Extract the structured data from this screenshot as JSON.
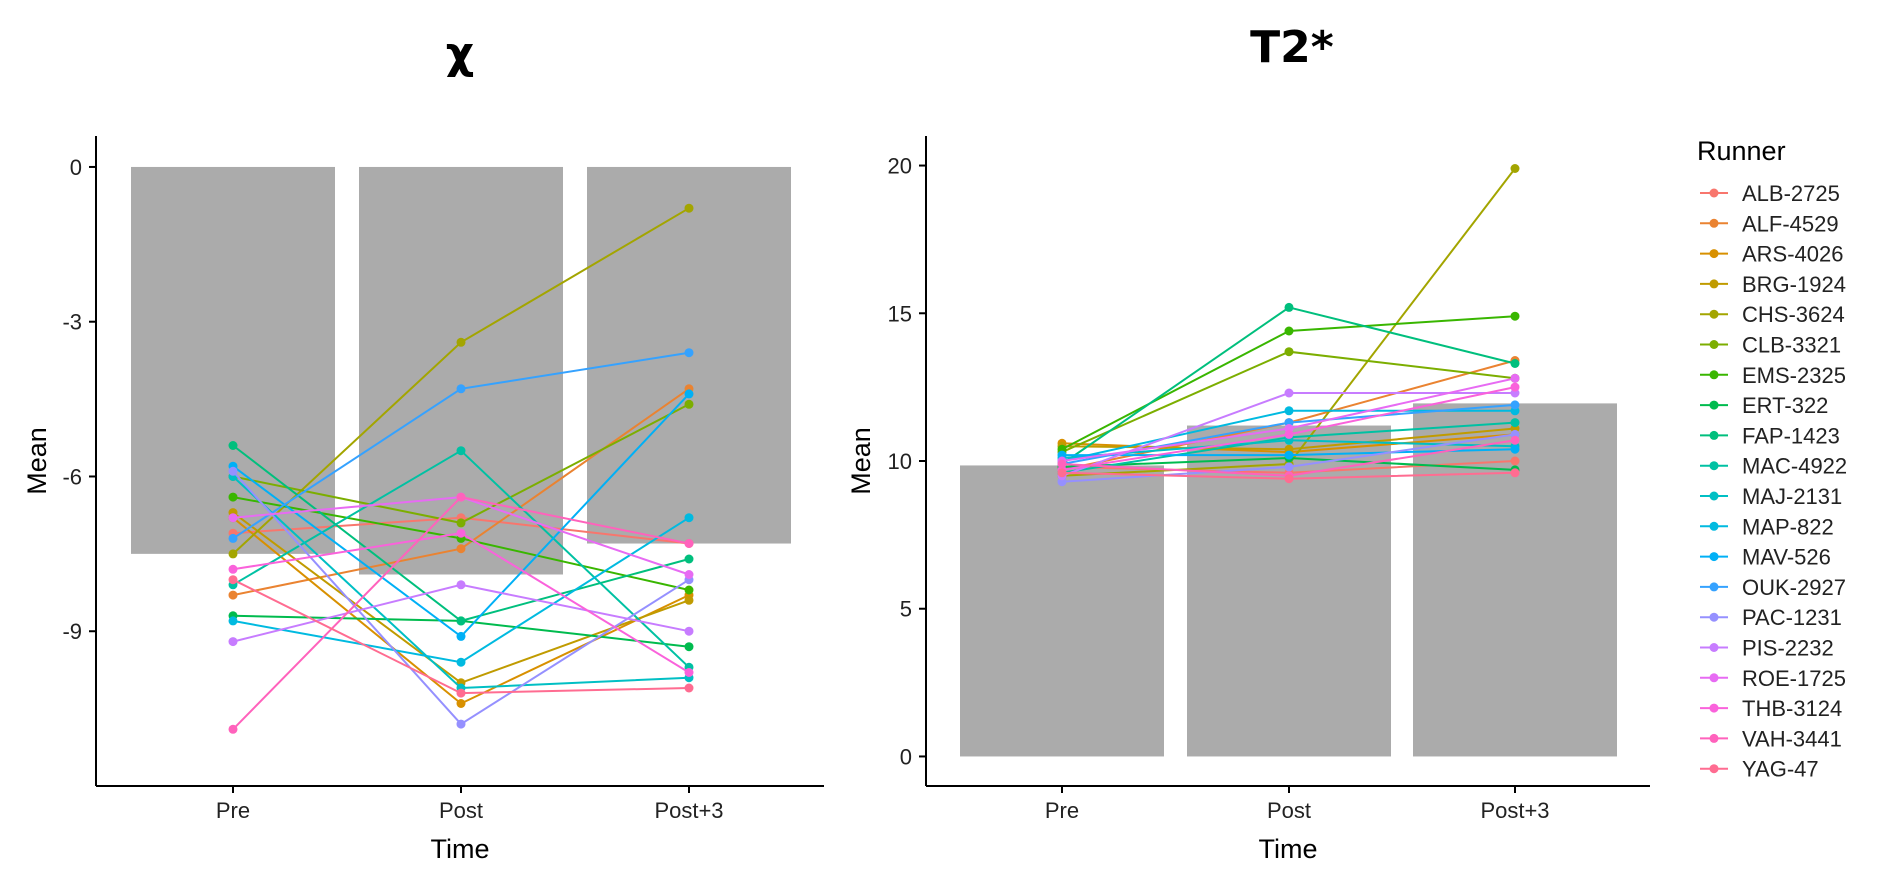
{
  "chart_data": [
    {
      "type": "bar+line",
      "title": "χ",
      "xlabel": "Time",
      "ylabel": "Mean",
      "categories": [
        "Pre",
        "Post",
        "Post+3"
      ],
      "ylim": [
        -12,
        0.6
      ],
      "yticks": [
        0,
        -3,
        -6,
        -9
      ],
      "ytick_labels": [
        "0",
        "-3",
        "-6",
        "-9"
      ],
      "bar_color": "#ababab",
      "bars": [
        -7.5,
        -7.9,
        -7.3
      ],
      "series": [
        {
          "name": "ALB-2725",
          "values": [
            -7.1,
            -6.8,
            -7.3
          ]
        },
        {
          "name": "ALF-4529",
          "values": [
            -8.3,
            -7.4,
            -4.3
          ]
        },
        {
          "name": "ARS-4026",
          "values": [
            -6.8,
            -10.4,
            -8.3
          ]
        },
        {
          "name": "BRG-1924",
          "values": [
            -6.7,
            -10.0,
            -8.4
          ]
        },
        {
          "name": "CHS-3624",
          "values": [
            -7.5,
            -3.4,
            -0.8
          ]
        },
        {
          "name": "CLB-3321",
          "values": [
            -6.0,
            -6.9,
            -4.6
          ]
        },
        {
          "name": "EMS-2325",
          "values": [
            -6.4,
            -7.2,
            -8.2
          ]
        },
        {
          "name": "ERT-322",
          "values": [
            -8.7,
            -8.8,
            -9.3
          ]
        },
        {
          "name": "FAP-1423",
          "values": [
            -5.4,
            -8.8,
            -7.6
          ]
        },
        {
          "name": "MAC-4922",
          "values": [
            -8.1,
            -5.5,
            -9.7
          ]
        },
        {
          "name": "MAJ-2131",
          "values": [
            -6.0,
            -10.1,
            -9.9
          ]
        },
        {
          "name": "MAP-822",
          "values": [
            -8.8,
            -9.6,
            -6.8
          ]
        },
        {
          "name": "MAV-526",
          "values": [
            -5.8,
            -9.1,
            -4.4
          ]
        },
        {
          "name": "OUK-2927",
          "values": [
            -7.2,
            -4.3,
            -3.6
          ]
        },
        {
          "name": "PAC-1231",
          "values": [
            -5.9,
            -10.8,
            -8.0
          ]
        },
        {
          "name": "PIS-2232",
          "values": [
            -9.2,
            -8.1,
            -9.0
          ]
        },
        {
          "name": "ROE-1725",
          "values": [
            -6.8,
            -6.4,
            -7.9
          ]
        },
        {
          "name": "THB-3124",
          "values": [
            -7.8,
            -7.1,
            -9.8
          ]
        },
        {
          "name": "VAH-3441",
          "values": [
            -10.9,
            -6.4,
            -7.3
          ]
        },
        {
          "name": "YAG-47",
          "values": [
            -8.0,
            -10.2,
            -10.1
          ]
        }
      ]
    },
    {
      "type": "bar+line",
      "title": "T2*",
      "xlabel": "Time",
      "ylabel": "Mean",
      "categories": [
        "Pre",
        "Post",
        "Post+3"
      ],
      "ylim": [
        -1.0,
        21.0
      ],
      "yticks": [
        0,
        5,
        10,
        15,
        20
      ],
      "ytick_labels": [
        "0",
        "5",
        "10",
        "15",
        "20"
      ],
      "bar_color": "#ababab",
      "bars": [
        9.85,
        11.2,
        11.95
      ],
      "series": [
        {
          "name": "ALB-2725",
          "values": [
            9.8,
            9.6,
            10.0
          ]
        },
        {
          "name": "ALF-4529",
          "values": [
            9.7,
            11.3,
            13.4
          ]
        },
        {
          "name": "ARS-4026",
          "values": [
            10.6,
            10.3,
            10.9
          ]
        },
        {
          "name": "BRG-1924",
          "values": [
            10.5,
            10.4,
            11.1
          ]
        },
        {
          "name": "CHS-3624",
          "values": [
            9.5,
            9.9,
            19.9
          ]
        },
        {
          "name": "CLB-3321",
          "values": [
            10.3,
            13.7,
            12.8
          ]
        },
        {
          "name": "EMS-2325",
          "values": [
            10.4,
            14.4,
            14.9
          ]
        },
        {
          "name": "ERT-322",
          "values": [
            9.8,
            10.1,
            9.7
          ]
        },
        {
          "name": "FAP-1423",
          "values": [
            9.9,
            15.2,
            13.3
          ]
        },
        {
          "name": "MAC-4922",
          "values": [
            9.6,
            10.8,
            11.3
          ]
        },
        {
          "name": "MAJ-2131",
          "values": [
            10.1,
            10.7,
            10.5
          ]
        },
        {
          "name": "MAP-822",
          "values": [
            10.0,
            11.7,
            11.7
          ]
        },
        {
          "name": "MAV-526",
          "values": [
            10.2,
            10.2,
            10.4
          ]
        },
        {
          "name": "OUK-2927",
          "values": [
            9.9,
            11.3,
            11.9
          ]
        },
        {
          "name": "PAC-1231",
          "values": [
            9.3,
            9.8,
            10.9
          ]
        },
        {
          "name": "PIS-2232",
          "values": [
            9.5,
            12.3,
            12.3
          ]
        },
        {
          "name": "ROE-1725",
          "values": [
            10.0,
            11.1,
            12.8
          ]
        },
        {
          "name": "THB-3124",
          "values": [
            9.7,
            10.9,
            12.5
          ]
        },
        {
          "name": "VAH-3441",
          "values": [
            9.9,
            9.5,
            10.7
          ]
        },
        {
          "name": "YAG-47",
          "values": [
            9.6,
            9.4,
            9.6
          ]
        }
      ]
    }
  ],
  "legend": {
    "title": "Runner",
    "placement": "right",
    "items": [
      {
        "name": "ALB-2725",
        "color": "#F8766D"
      },
      {
        "name": "ALF-4529",
        "color": "#EA8331"
      },
      {
        "name": "ARS-4026",
        "color": "#D89000"
      },
      {
        "name": "BRG-1924",
        "color": "#C09B00"
      },
      {
        "name": "CHS-3624",
        "color": "#A3A500"
      },
      {
        "name": "CLB-3321",
        "color": "#7CAE00"
      },
      {
        "name": "EMS-2325",
        "color": "#39B600"
      },
      {
        "name": "ERT-322",
        "color": "#00BB4E"
      },
      {
        "name": "FAP-1423",
        "color": "#00BF7D"
      },
      {
        "name": "MAC-4922",
        "color": "#00C1A3"
      },
      {
        "name": "MAJ-2131",
        "color": "#00BFC4"
      },
      {
        "name": "MAP-822",
        "color": "#00BAE0"
      },
      {
        "name": "MAV-526",
        "color": "#00B0F6"
      },
      {
        "name": "OUK-2927",
        "color": "#35A2FF"
      },
      {
        "name": "PAC-1231",
        "color": "#9590FF"
      },
      {
        "name": "PIS-2232",
        "color": "#C77CFF"
      },
      {
        "name": "ROE-1725",
        "color": "#E76BF3"
      },
      {
        "name": "THB-3124",
        "color": "#FA62DB"
      },
      {
        "name": "VAH-3441",
        "color": "#FF62BC"
      },
      {
        "name": "YAG-47",
        "color": "#FF6C91"
      }
    ]
  }
}
